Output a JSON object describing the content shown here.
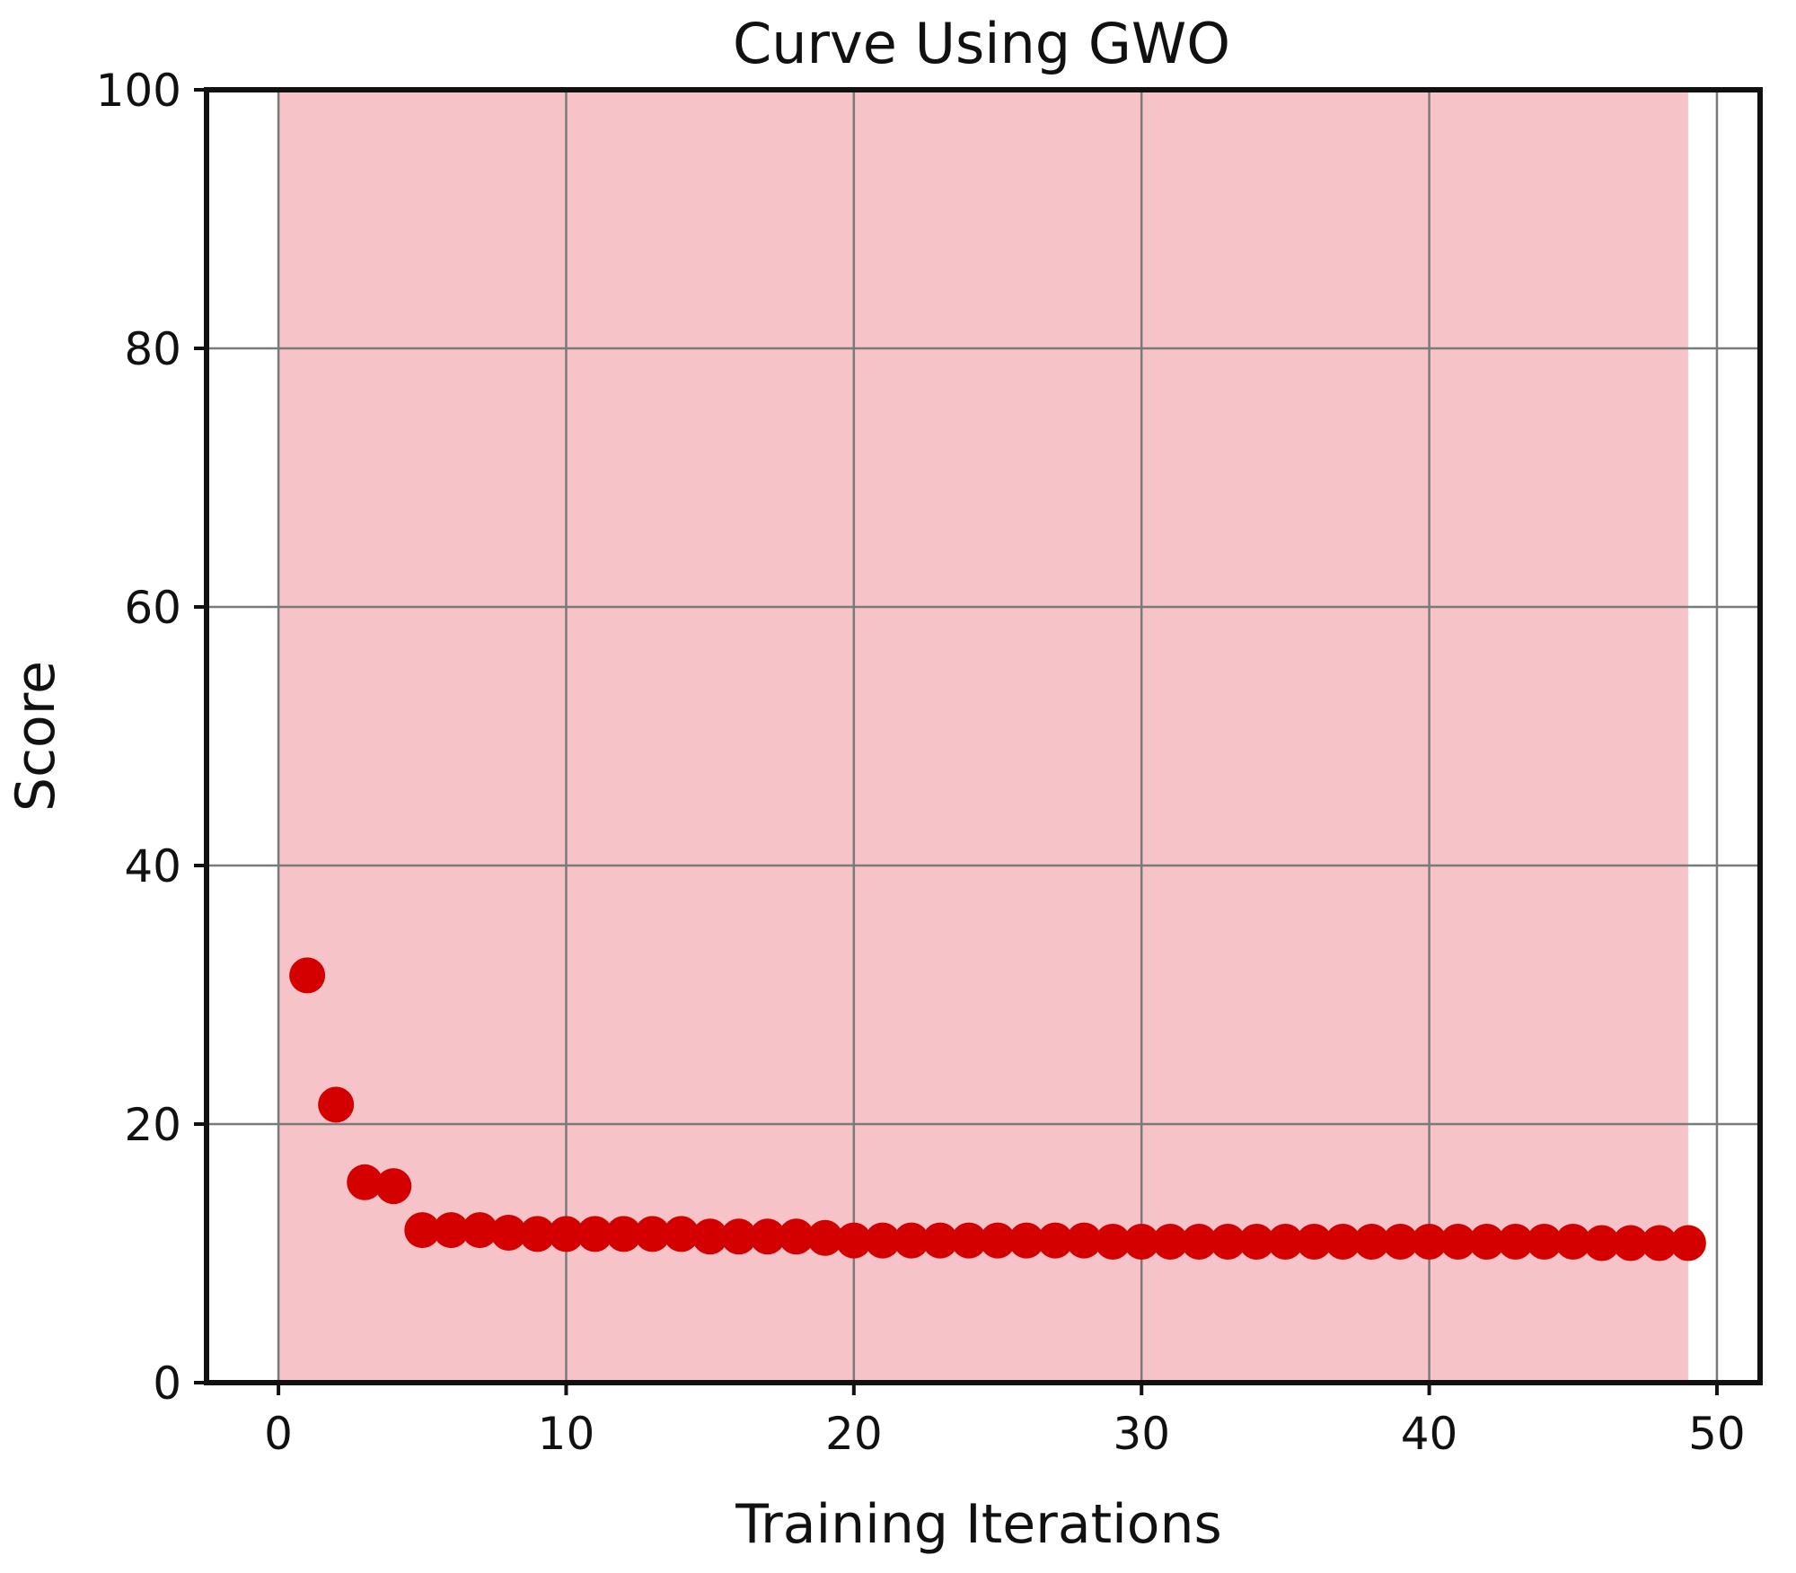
{
  "chart_data": {
    "type": "scatter",
    "title": "Curve Using GWO",
    "xlabel": "Training Iterations",
    "ylabel": "Score",
    "xlim": [
      -2.5,
      51.5
    ],
    "ylim": [
      0,
      100
    ],
    "x_ticks": [
      "0",
      "10",
      "20",
      "30",
      "40",
      "50"
    ],
    "y_ticks": [
      "0",
      "20",
      "40",
      "60",
      "80",
      "100"
    ],
    "grid": true,
    "shaded_region_x": [
      0,
      49
    ],
    "colors": {
      "marker": "#d40000",
      "shaded_region": "#f6c4c8",
      "grid": "#7a7a7a",
      "frame": "#111111"
    },
    "series": [
      {
        "x": [
          1,
          2,
          3,
          4,
          5,
          6,
          7,
          8,
          9,
          10,
          11,
          12,
          13,
          14,
          15,
          16,
          17,
          18,
          19,
          20,
          21,
          22,
          23,
          24,
          25,
          26,
          27,
          28,
          29,
          30,
          31,
          32,
          33,
          34,
          35,
          36,
          37,
          38,
          39,
          40,
          41,
          42,
          43,
          44,
          45,
          46,
          47,
          48,
          49
        ],
        "y": [
          31.5,
          21.5,
          15.5,
          15.2,
          11.8,
          11.8,
          11.8,
          11.6,
          11.5,
          11.5,
          11.5,
          11.5,
          11.5,
          11.5,
          11.3,
          11.3,
          11.3,
          11.3,
          11.2,
          11.0,
          11.0,
          11.0,
          11.0,
          11.0,
          11.0,
          11.0,
          11.0,
          11.0,
          10.9,
          10.9,
          10.9,
          10.9,
          10.9,
          10.9,
          10.9,
          10.9,
          10.9,
          10.9,
          10.9,
          10.9,
          10.9,
          10.9,
          10.9,
          10.9,
          10.9,
          10.8,
          10.8,
          10.8,
          10.8
        ]
      }
    ]
  }
}
